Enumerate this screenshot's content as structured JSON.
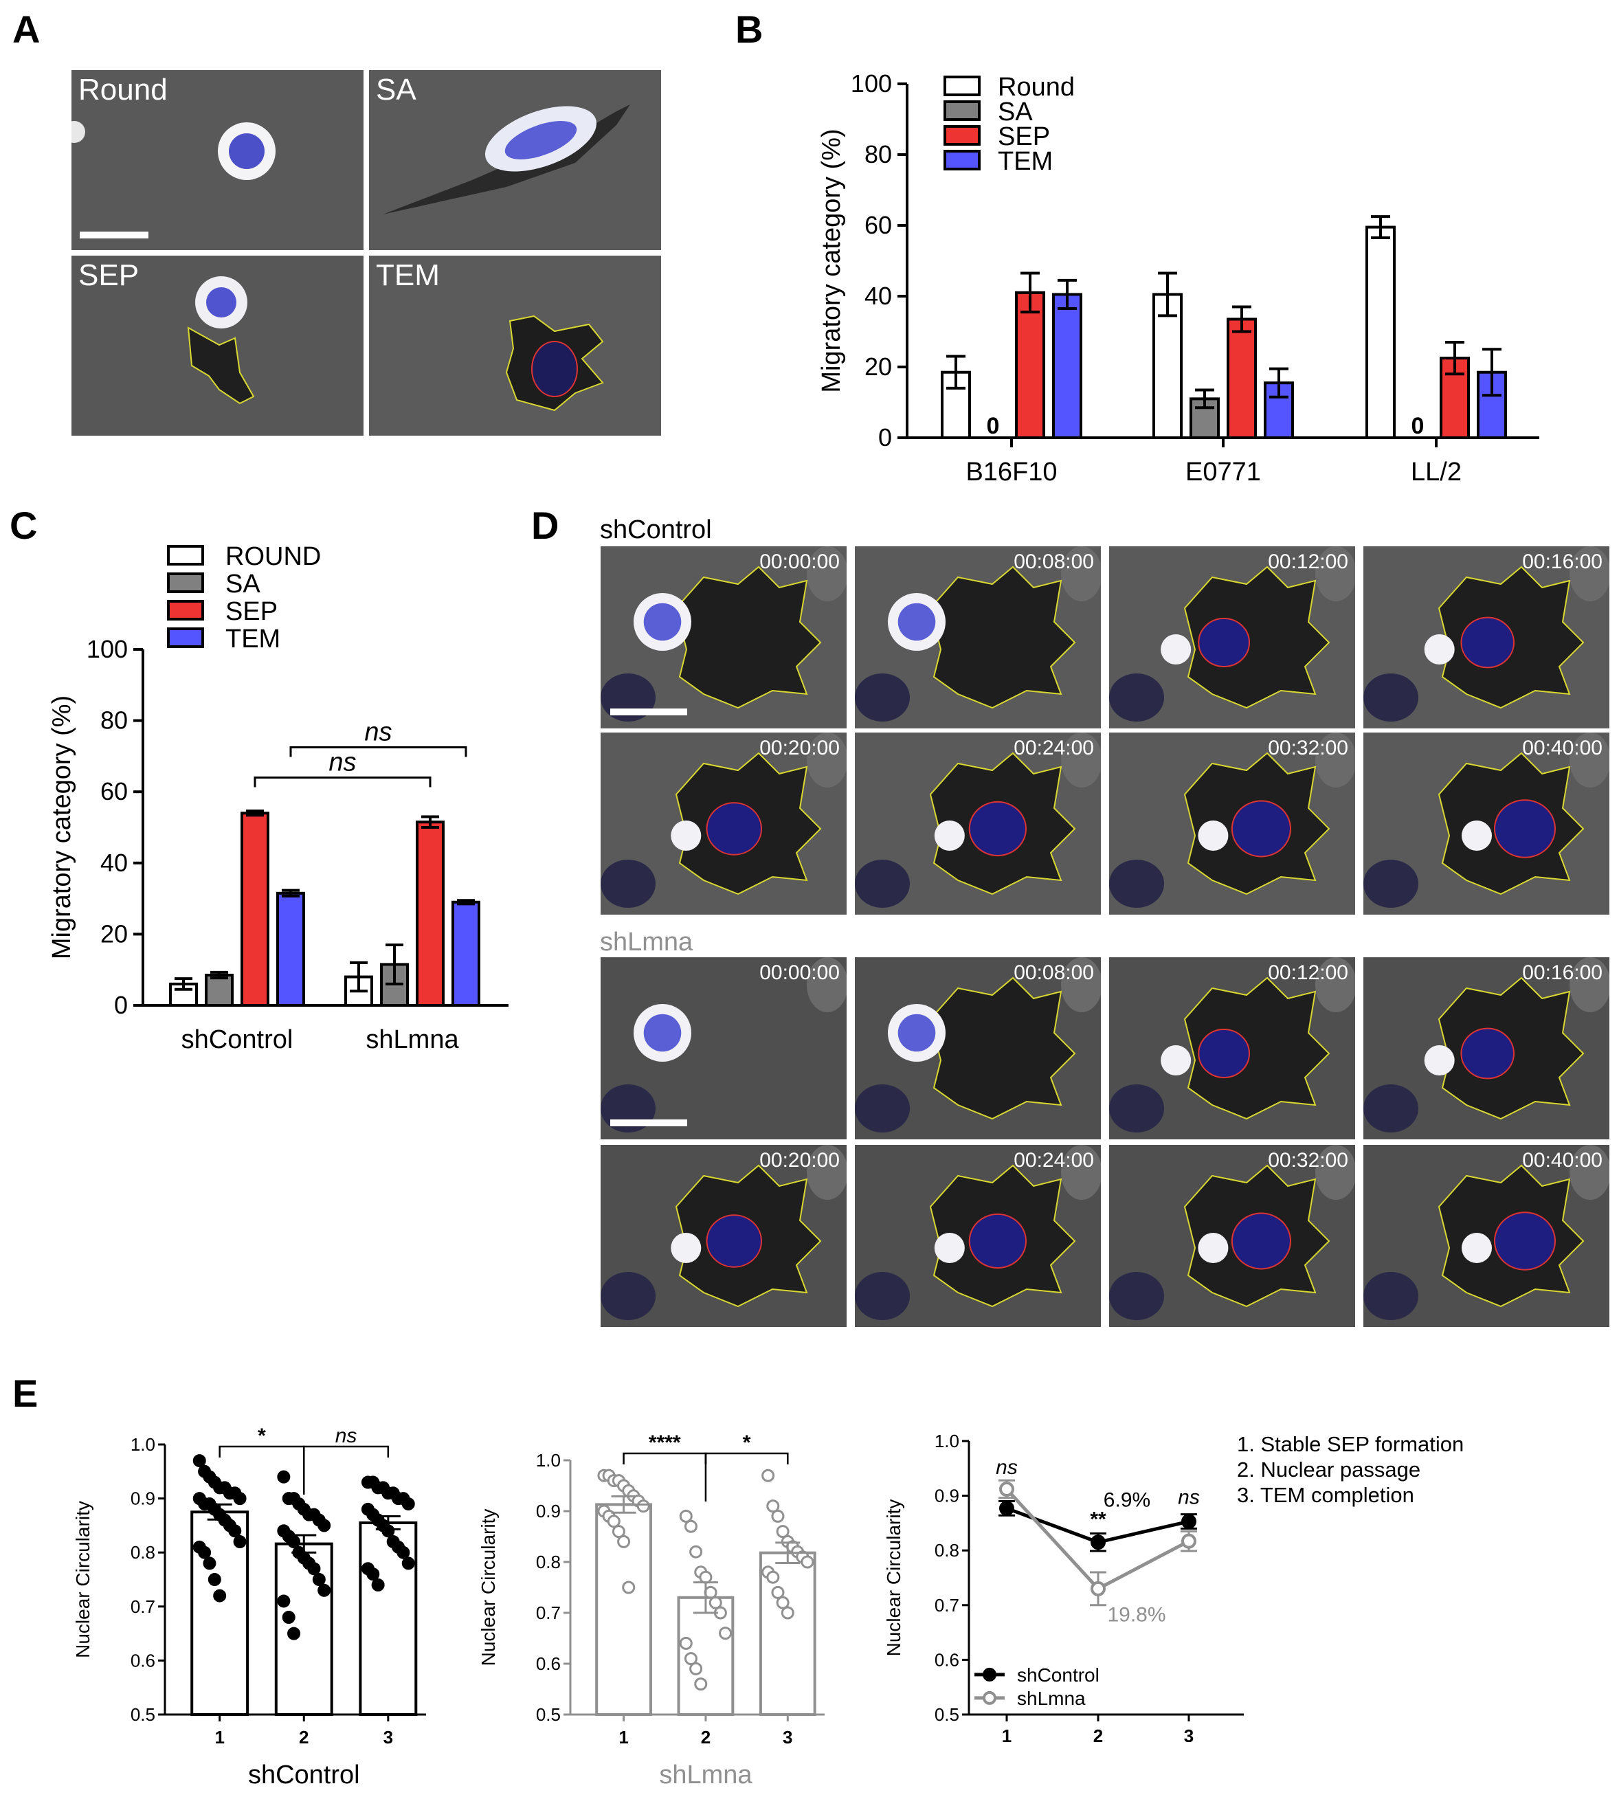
{
  "panels": {
    "A": "A",
    "B": "B",
    "C": "C",
    "D": "D",
    "E": "E"
  },
  "panelA": {
    "labels": [
      "Round",
      "SA",
      "SEP",
      "TEM"
    ]
  },
  "colors": {
    "round": "#ffffff",
    "sa": "#808080",
    "sep": "#ee3333",
    "tem": "#5555ff",
    "shcontrol": "#000000",
    "shlmna": "#909090"
  },
  "chartB": {
    "type": "bar",
    "ylabel": "Migratory category (%)",
    "ylim": [
      0,
      100
    ],
    "yticks": [
      0,
      20,
      40,
      60,
      80,
      100
    ],
    "categories": [
      "B16F10",
      "E0771",
      "LL/2"
    ],
    "legend": [
      "Round",
      "SA",
      "SEP",
      "TEM"
    ],
    "series": [
      {
        "name": "Round",
        "values": [
          18.5,
          40.5,
          59.5
        ],
        "err": [
          4.5,
          6,
          3
        ]
      },
      {
        "name": "SA",
        "values": [
          0,
          11,
          0
        ],
        "err": [
          0,
          2.5,
          0
        ]
      },
      {
        "name": "SEP",
        "values": [
          41,
          33.5,
          22.5
        ],
        "err": [
          5.5,
          3.5,
          4.5
        ]
      },
      {
        "name": "TEM",
        "values": [
          40.5,
          15.5,
          18.5
        ],
        "err": [
          4,
          4,
          6.5
        ]
      }
    ],
    "zero_label": "0"
  },
  "chartC": {
    "type": "bar",
    "ylabel": "Migratory category (%)",
    "ylim": [
      0,
      100
    ],
    "yticks": [
      0,
      20,
      40,
      60,
      80,
      100
    ],
    "categories": [
      "shControl",
      "shLmna"
    ],
    "legend": [
      "ROUND",
      "SA",
      "SEP",
      "TEM"
    ],
    "series": [
      {
        "name": "ROUND",
        "values": [
          6,
          8
        ],
        "err": [
          1.5,
          4
        ]
      },
      {
        "name": "SA",
        "values": [
          8.5,
          11.5
        ],
        "err": [
          0.8,
          5.5
        ]
      },
      {
        "name": "SEP",
        "values": [
          54,
          51.5
        ],
        "err": [
          0.6,
          1.5
        ]
      },
      {
        "name": "TEM",
        "values": [
          31.5,
          29
        ],
        "err": [
          0.8,
          0.5
        ]
      }
    ],
    "sig": [
      "ns",
      "ns"
    ]
  },
  "panelD": {
    "groups": [
      {
        "label": "shControl",
        "times": [
          "00:00:00",
          "00:08:00",
          "00:12:00",
          "00:16:00",
          "00:20:00",
          "00:24:00",
          "00:32:00",
          "00:40:00"
        ]
      },
      {
        "label": "shLmna",
        "times": [
          "00:00:00",
          "00:08:00",
          "00:12:00",
          "00:16:00",
          "00:20:00",
          "00:24:00",
          "00:32:00",
          "00:40:00"
        ]
      }
    ]
  },
  "chartE1": {
    "type": "bar",
    "ylabel": "Nuclear Circularity",
    "ylim": [
      0.5,
      1.0
    ],
    "yticks": [
      "0.5",
      "0.6",
      "0.7",
      "0.8",
      "0.9",
      "1.0"
    ],
    "categories": [
      "1",
      "2",
      "3"
    ],
    "xlabel": "shControl",
    "means": [
      0.875,
      0.816,
      0.855
    ],
    "sem": [
      0.014,
      0.016,
      0.012
    ],
    "points": [
      [
        0.97,
        0.95,
        0.94,
        0.93,
        0.92,
        0.92,
        0.91,
        0.91,
        0.9,
        0.9,
        0.89,
        0.89,
        0.88,
        0.87,
        0.86,
        0.85,
        0.84,
        0.82,
        0.81,
        0.8,
        0.78,
        0.75,
        0.72
      ],
      [
        0.94,
        0.9,
        0.9,
        0.89,
        0.88,
        0.87,
        0.87,
        0.86,
        0.85,
        0.84,
        0.83,
        0.82,
        0.8,
        0.79,
        0.78,
        0.77,
        0.75,
        0.73,
        0.71,
        0.68,
        0.65
      ],
      [
        0.93,
        0.93,
        0.92,
        0.92,
        0.91,
        0.91,
        0.9,
        0.9,
        0.89,
        0.88,
        0.87,
        0.86,
        0.85,
        0.84,
        0.82,
        0.81,
        0.8,
        0.78,
        0.77,
        0.76,
        0.74
      ]
    ],
    "sig": [
      "*",
      "ns"
    ]
  },
  "chartE2": {
    "type": "bar",
    "ylabel": "Nuclear Circularity",
    "ylim": [
      0.5,
      1.0
    ],
    "yticks": [
      "0.5",
      "0.6",
      "0.7",
      "0.8",
      "0.9",
      "1.0"
    ],
    "categories": [
      "1",
      "2",
      "3"
    ],
    "xlabel": "shLmna",
    "means": [
      0.913,
      0.73,
      0.818
    ],
    "sem": [
      0.016,
      0.03,
      0.02
    ],
    "points": [
      [
        0.97,
        0.97,
        0.96,
        0.96,
        0.95,
        0.94,
        0.93,
        0.92,
        0.91,
        0.9,
        0.89,
        0.88,
        0.86,
        0.84,
        0.75
      ],
      [
        0.89,
        0.87,
        0.82,
        0.78,
        0.77,
        0.74,
        0.72,
        0.7,
        0.66,
        0.64,
        0.61,
        0.59,
        0.56
      ],
      [
        0.97,
        0.91,
        0.89,
        0.86,
        0.84,
        0.83,
        0.82,
        0.81,
        0.8,
        0.78,
        0.77,
        0.74,
        0.72,
        0.7
      ]
    ],
    "sig": [
      "****",
      "*"
    ]
  },
  "chartE3": {
    "type": "line",
    "ylabel": "Nuclear Circularity",
    "ylim": [
      0.5,
      1.0
    ],
    "yticks": [
      "0.5",
      "0.6",
      "0.7",
      "0.8",
      "0.9",
      "1.0"
    ],
    "x": [
      "1",
      "2",
      "3"
    ],
    "series": [
      {
        "name": "shControl",
        "values": [
          0.877,
          0.815,
          0.853
        ],
        "err": [
          0.013,
          0.016,
          0.013
        ]
      },
      {
        "name": "shLmna",
        "values": [
          0.912,
          0.73,
          0.817
        ],
        "err": [
          0.016,
          0.03,
          0.018
        ]
      }
    ],
    "annotations": {
      "ns1": "ns",
      "stars": "**",
      "ns3": "ns",
      "pct_control": "6.9%",
      "pct_lmna": "19.8%"
    },
    "steps": [
      "1.  Stable SEP formation",
      "2.  Nuclear passage",
      "3.  TEM completion"
    ]
  }
}
